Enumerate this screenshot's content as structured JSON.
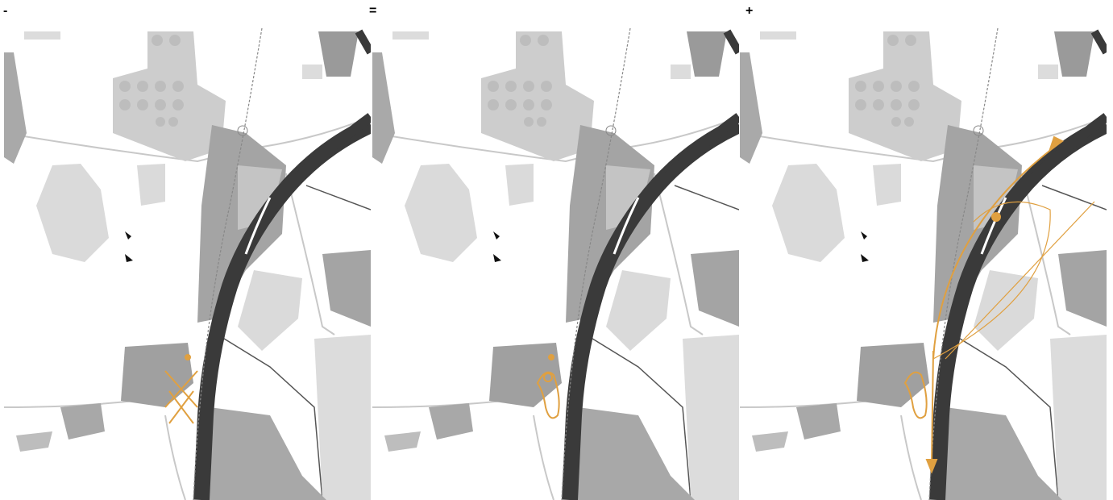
{
  "panels": [
    {
      "label": "-"
    },
    {
      "label": "="
    },
    {
      "label": "+"
    }
  ]
}
